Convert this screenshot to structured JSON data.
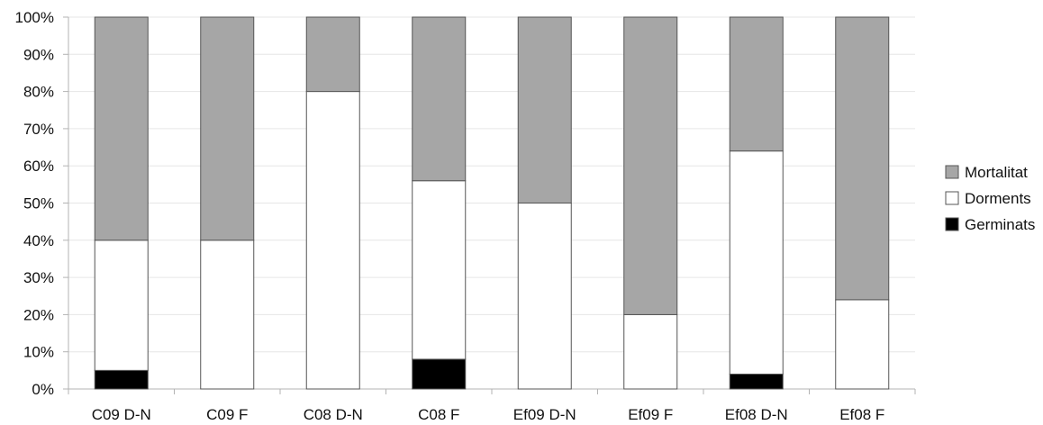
{
  "chart_data": {
    "type": "bar",
    "stacked": true,
    "percent_stacked": true,
    "categories": [
      "C09 D-N",
      "C09 F",
      "C08 D-N",
      "C08 F",
      "Ef09 D-N",
      "Ef09 F",
      "Ef08 D-N",
      "Ef08 F"
    ],
    "series": [
      {
        "name": "Germinats",
        "color": "#000000",
        "values": [
          5,
          0,
          0,
          8,
          0,
          0,
          4,
          0
        ]
      },
      {
        "name": "Dorments",
        "color": "#ffffff",
        "values": [
          35,
          40,
          80,
          48,
          50,
          20,
          60,
          24
        ]
      },
      {
        "name": "Mortalitat",
        "color": "#a6a6a6",
        "values": [
          60,
          60,
          20,
          44,
          50,
          80,
          36,
          76
        ]
      }
    ],
    "ylim": [
      0,
      100
    ],
    "yticks": [
      "0%",
      "10%",
      "20%",
      "30%",
      "40%",
      "50%",
      "60%",
      "70%",
      "80%",
      "90%",
      "100%"
    ],
    "legend_order": [
      "Mortalitat",
      "Dorments",
      "Germinats"
    ],
    "legend_position": "right",
    "title": "",
    "xlabel": "",
    "ylabel": "",
    "grid": true
  }
}
